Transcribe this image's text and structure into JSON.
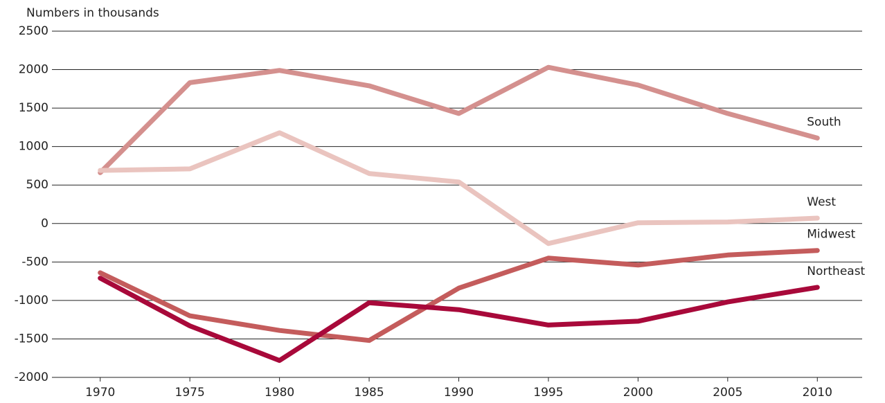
{
  "chart_data": {
    "type": "line",
    "y_label": "Numbers in thousands",
    "x": [
      1970,
      1975,
      1980,
      1985,
      1990,
      1995,
      2000,
      2005,
      2010
    ],
    "xlim": [
      1967.5,
      2012.5
    ],
    "xticks": [
      1970,
      1975,
      1980,
      1985,
      1990,
      1995,
      2000,
      2005,
      2010
    ],
    "ylim": [
      -2000,
      2500
    ],
    "yticks": [
      -2000,
      -1500,
      -1000,
      -500,
      0,
      500,
      1000,
      1500,
      2000,
      2500
    ],
    "grid": true,
    "series": [
      {
        "name": "South",
        "color": "#d4908e",
        "values": [
          660,
          1830,
          1990,
          1790,
          1430,
          2030,
          1800,
          1430,
          1110
        ]
      },
      {
        "name": "West",
        "color": "#eac4bf",
        "values": [
          690,
          710,
          1180,
          650,
          540,
          -260,
          10,
          20,
          70
        ]
      },
      {
        "name": "Midwest",
        "color": "#c45c5c",
        "values": [
          -640,
          -1200,
          -1390,
          -1520,
          -840,
          -450,
          -540,
          -410,
          -350
        ]
      },
      {
        "name": "Northeast",
        "color": "#a8093a",
        "values": [
          -710,
          -1330,
          -1780,
          -1030,
          -1120,
          -1320,
          -1270,
          -1020,
          -830
        ]
      }
    ]
  }
}
